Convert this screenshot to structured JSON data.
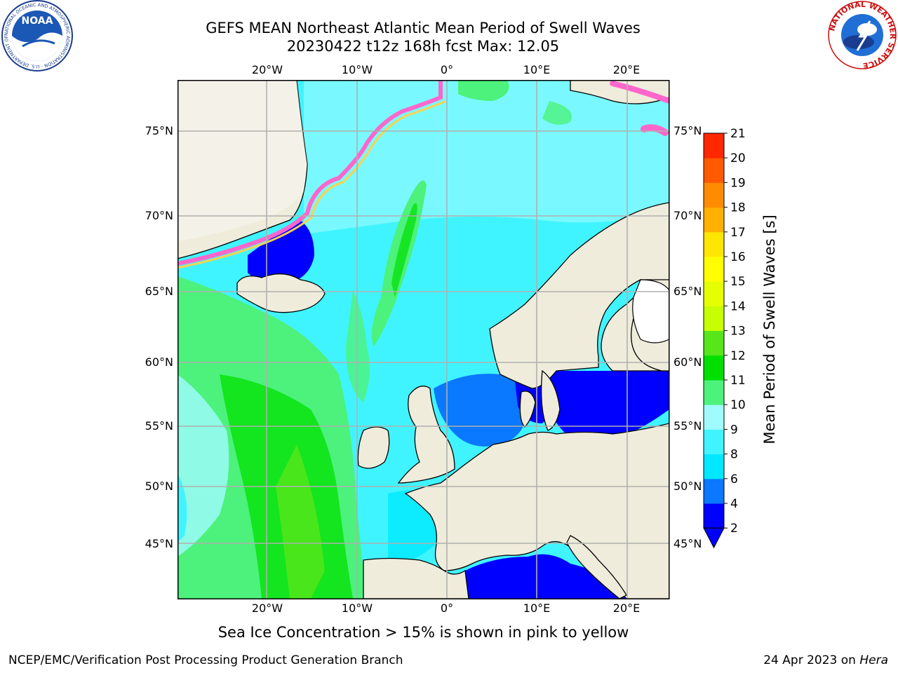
{
  "header": {
    "title_line1": "GEFS MEAN Northeast Atlantic Mean Period of Swell Waves",
    "title_line2": "20230422 t12z 168h fcst   Max: 12.05"
  },
  "logos": {
    "left": {
      "name": "noaa-logo",
      "text": "NOAA",
      "ring_text": "NATIONAL OCEANIC AND ATMOSPHERIC ADMINISTRATION · U.S. DEPARTMENT OF COMMERCE"
    },
    "right": {
      "name": "nws-logo",
      "ring_text": "NATIONAL WEATHER SERVICE"
    }
  },
  "map": {
    "lon_ticks_top": [
      "20°W",
      "10°W",
      "0°",
      "10°E",
      "20°E"
    ],
    "lon_ticks_bottom": [
      "20°W",
      "10°W",
      "0°",
      "10°E",
      "20°E"
    ],
    "lat_ticks_left": [
      "75°N",
      "70°N",
      "65°N",
      "60°N",
      "55°N",
      "50°N",
      "45°N"
    ],
    "lat_ticks_right": [
      "75°N",
      "70°N",
      "65°N",
      "60°N",
      "55°N",
      "50°N",
      "45°N"
    ],
    "colors": {
      "land": "#efecdc",
      "ice_white": "#ffffff",
      "grid": "#b0b0b0"
    }
  },
  "colorbar": {
    "label": "Mean Period of Swell Waves [s]",
    "tick_labels": [
      "2",
      "4",
      "6",
      "8",
      "9",
      "10",
      "11",
      "12",
      "13",
      "14",
      "15",
      "16",
      "17",
      "18",
      "19",
      "20",
      "21"
    ],
    "bins": [
      {
        "color": "#0000ff"
      },
      {
        "color": "#0a78ff"
      },
      {
        "color": "#00e8ff"
      },
      {
        "color": "#40f4ff"
      },
      {
        "color": "#a0fbff"
      },
      {
        "color": "#4cf27c"
      },
      {
        "color": "#00e000"
      },
      {
        "color": "#56e61a"
      },
      {
        "color": "#c8ff00"
      },
      {
        "color": "#e6ff00"
      },
      {
        "color": "#ffff00"
      },
      {
        "color": "#ffe600"
      },
      {
        "color": "#ffb000"
      },
      {
        "color": "#ff8c00"
      },
      {
        "color": "#ff5a00"
      },
      {
        "color": "#ff2800"
      }
    ],
    "extend": "min"
  },
  "caption": "Sea Ice Concentration > 15% is shown in pink to yellow",
  "footer": {
    "left": "NCEP/EMC/Verification Post Processing Product Generation Branch",
    "right_date": "24 Apr 2023 on",
    "right_host": "Hera"
  }
}
